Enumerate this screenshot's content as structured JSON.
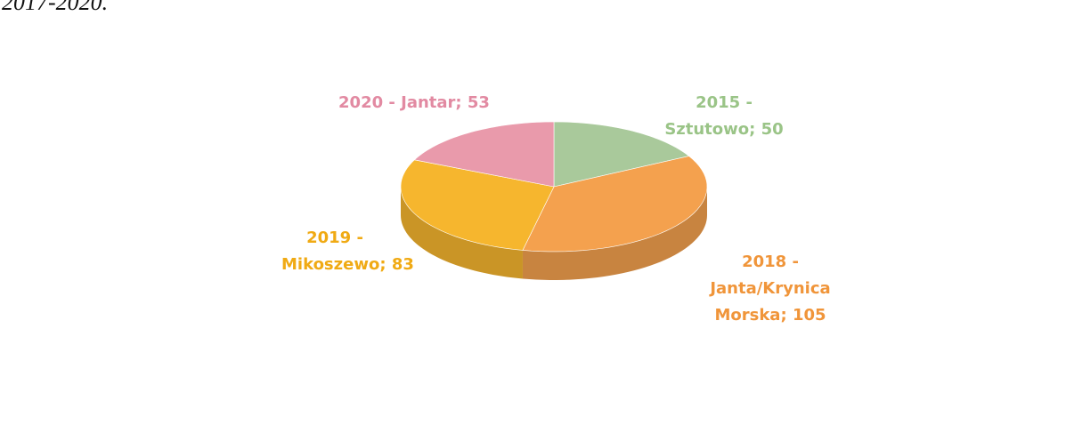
{
  "annotations": [
    "2017-2020."
  ],
  "chart_data": {
    "type": "pie3d",
    "categories": [
      "2015 - Sztutowo",
      "2018 - Janta/Krynica Morska",
      "2019 - Mikoszewo",
      "2020 - Jantar"
    ],
    "values": [
      50,
      105,
      83,
      53
    ],
    "label_separator": "; ",
    "colors": [
      "#a9c99b",
      "#f4a14e",
      "#f6b62e",
      "#e99aab"
    ],
    "label_colors": [
      "#9ac487",
      "#f0953a",
      "#f0aa14",
      "#e28aa2"
    ]
  }
}
